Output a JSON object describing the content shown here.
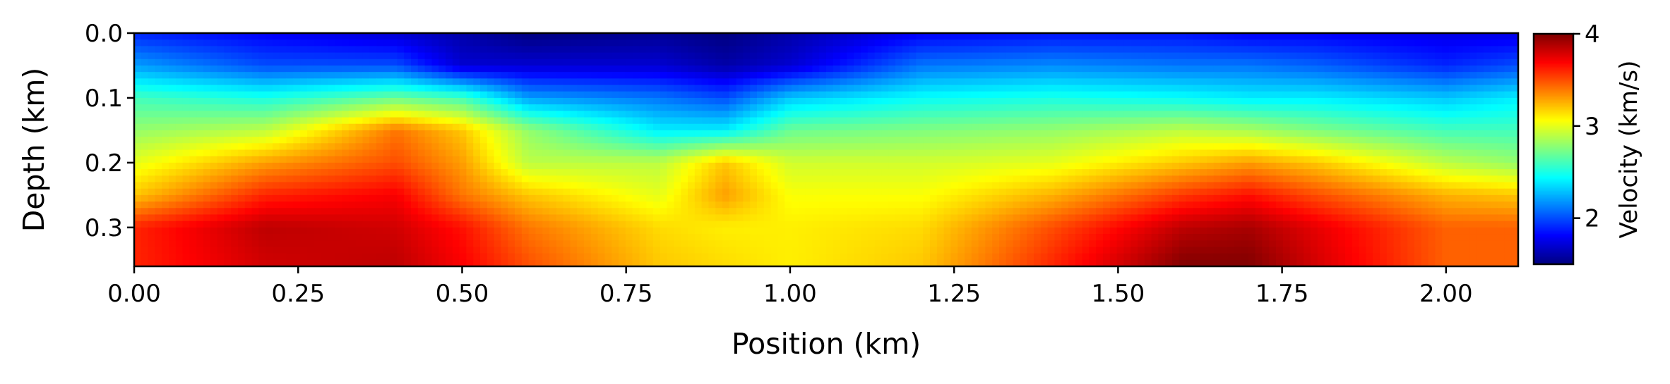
{
  "chart_data": {
    "type": "heatmap",
    "title": "",
    "xlabel": "Position (km)",
    "ylabel": "Depth (km)",
    "xlim": [
      0.0,
      2.11
    ],
    "ylim": [
      0.36,
      0.0
    ],
    "x_ticks": [
      "0.00",
      "0.25",
      "0.50",
      "0.75",
      "1.00",
      "1.25",
      "1.50",
      "1.75",
      "2.00"
    ],
    "y_ticks": [
      "0.0",
      "0.1",
      "0.2",
      "0.3"
    ],
    "colormap": "jet",
    "colorbar": {
      "label": "Velocity (km/s)",
      "range": [
        1.5,
        4.0
      ],
      "ticks": [
        "2",
        "3",
        "4"
      ]
    },
    "grid": false,
    "field": {
      "x": [
        0.0,
        0.2,
        0.4,
        0.5,
        0.6,
        0.8,
        0.9,
        1.0,
        1.2,
        1.4,
        1.6,
        1.7,
        1.8,
        2.0,
        2.11
      ],
      "y": [
        0.0,
        0.05,
        0.1,
        0.15,
        0.2,
        0.25,
        0.3,
        0.36
      ],
      "values": [
        [
          1.9,
          1.8,
          1.7,
          1.6,
          1.5,
          1.55,
          1.5,
          1.6,
          1.8,
          1.85,
          1.85,
          1.8,
          1.8,
          1.75,
          1.75
        ],
        [
          2.2,
          2.0,
          2.0,
          1.7,
          1.7,
          1.7,
          1.6,
          1.7,
          2.1,
          2.15,
          2.1,
          2.1,
          2.05,
          1.9,
          2.0
        ],
        [
          2.6,
          2.5,
          2.7,
          2.6,
          2.2,
          2.1,
          2.0,
          2.3,
          2.45,
          2.5,
          2.45,
          2.4,
          2.4,
          2.3,
          2.4
        ],
        [
          2.8,
          2.9,
          3.4,
          3.2,
          2.8,
          2.4,
          2.4,
          2.7,
          2.75,
          2.8,
          2.9,
          2.85,
          2.75,
          2.6,
          2.6
        ],
        [
          3.0,
          3.3,
          3.5,
          3.3,
          2.9,
          2.9,
          3.2,
          2.95,
          2.95,
          3.0,
          3.2,
          3.3,
          3.2,
          2.9,
          2.8
        ],
        [
          3.2,
          3.6,
          3.7,
          3.4,
          3.2,
          3.0,
          3.3,
          3.05,
          3.05,
          3.25,
          3.55,
          3.65,
          3.5,
          3.25,
          3.2
        ],
        [
          3.6,
          3.85,
          3.8,
          3.65,
          3.4,
          3.15,
          3.1,
          3.1,
          3.15,
          3.5,
          3.85,
          3.9,
          3.75,
          3.45,
          3.45
        ],
        [
          3.6,
          3.8,
          3.85,
          3.7,
          3.5,
          3.2,
          3.15,
          3.1,
          3.2,
          3.6,
          4.0,
          4.0,
          3.8,
          3.45,
          3.45
        ]
      ]
    }
  }
}
